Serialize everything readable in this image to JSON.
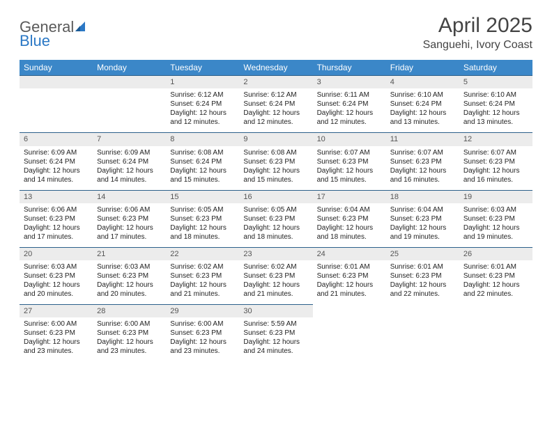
{
  "logo": {
    "text1": "General",
    "text2": "Blue"
  },
  "title": "April 2025",
  "location": "Sanguehi, Ivory Coast",
  "day_headers": [
    "Sunday",
    "Monday",
    "Tuesday",
    "Wednesday",
    "Thursday",
    "Friday",
    "Saturday"
  ],
  "colors": {
    "header_bg": "#3b87c8",
    "header_text": "#ffffff",
    "daynum_bg": "#ececec",
    "daynum_text": "#555555",
    "rule": "#2b5f8a",
    "logo_gray": "#5a5a5a",
    "logo_blue": "#2b78c5"
  },
  "weeks": [
    [
      {
        "blank": true
      },
      {
        "blank": true
      },
      {
        "n": "1",
        "sr": "Sunrise: 6:12 AM",
        "ss": "Sunset: 6:24 PM",
        "dl": "Daylight: 12 hours and 12 minutes."
      },
      {
        "n": "2",
        "sr": "Sunrise: 6:12 AM",
        "ss": "Sunset: 6:24 PM",
        "dl": "Daylight: 12 hours and 12 minutes."
      },
      {
        "n": "3",
        "sr": "Sunrise: 6:11 AM",
        "ss": "Sunset: 6:24 PM",
        "dl": "Daylight: 12 hours and 12 minutes."
      },
      {
        "n": "4",
        "sr": "Sunrise: 6:10 AM",
        "ss": "Sunset: 6:24 PM",
        "dl": "Daylight: 12 hours and 13 minutes."
      },
      {
        "n": "5",
        "sr": "Sunrise: 6:10 AM",
        "ss": "Sunset: 6:24 PM",
        "dl": "Daylight: 12 hours and 13 minutes."
      }
    ],
    [
      {
        "n": "6",
        "sr": "Sunrise: 6:09 AM",
        "ss": "Sunset: 6:24 PM",
        "dl": "Daylight: 12 hours and 14 minutes."
      },
      {
        "n": "7",
        "sr": "Sunrise: 6:09 AM",
        "ss": "Sunset: 6:24 PM",
        "dl": "Daylight: 12 hours and 14 minutes."
      },
      {
        "n": "8",
        "sr": "Sunrise: 6:08 AM",
        "ss": "Sunset: 6:24 PM",
        "dl": "Daylight: 12 hours and 15 minutes."
      },
      {
        "n": "9",
        "sr": "Sunrise: 6:08 AM",
        "ss": "Sunset: 6:23 PM",
        "dl": "Daylight: 12 hours and 15 minutes."
      },
      {
        "n": "10",
        "sr": "Sunrise: 6:07 AM",
        "ss": "Sunset: 6:23 PM",
        "dl": "Daylight: 12 hours and 15 minutes."
      },
      {
        "n": "11",
        "sr": "Sunrise: 6:07 AM",
        "ss": "Sunset: 6:23 PM",
        "dl": "Daylight: 12 hours and 16 minutes."
      },
      {
        "n": "12",
        "sr": "Sunrise: 6:07 AM",
        "ss": "Sunset: 6:23 PM",
        "dl": "Daylight: 12 hours and 16 minutes."
      }
    ],
    [
      {
        "n": "13",
        "sr": "Sunrise: 6:06 AM",
        "ss": "Sunset: 6:23 PM",
        "dl": "Daylight: 12 hours and 17 minutes."
      },
      {
        "n": "14",
        "sr": "Sunrise: 6:06 AM",
        "ss": "Sunset: 6:23 PM",
        "dl": "Daylight: 12 hours and 17 minutes."
      },
      {
        "n": "15",
        "sr": "Sunrise: 6:05 AM",
        "ss": "Sunset: 6:23 PM",
        "dl": "Daylight: 12 hours and 18 minutes."
      },
      {
        "n": "16",
        "sr": "Sunrise: 6:05 AM",
        "ss": "Sunset: 6:23 PM",
        "dl": "Daylight: 12 hours and 18 minutes."
      },
      {
        "n": "17",
        "sr": "Sunrise: 6:04 AM",
        "ss": "Sunset: 6:23 PM",
        "dl": "Daylight: 12 hours and 18 minutes."
      },
      {
        "n": "18",
        "sr": "Sunrise: 6:04 AM",
        "ss": "Sunset: 6:23 PM",
        "dl": "Daylight: 12 hours and 19 minutes."
      },
      {
        "n": "19",
        "sr": "Sunrise: 6:03 AM",
        "ss": "Sunset: 6:23 PM",
        "dl": "Daylight: 12 hours and 19 minutes."
      }
    ],
    [
      {
        "n": "20",
        "sr": "Sunrise: 6:03 AM",
        "ss": "Sunset: 6:23 PM",
        "dl": "Daylight: 12 hours and 20 minutes."
      },
      {
        "n": "21",
        "sr": "Sunrise: 6:03 AM",
        "ss": "Sunset: 6:23 PM",
        "dl": "Daylight: 12 hours and 20 minutes."
      },
      {
        "n": "22",
        "sr": "Sunrise: 6:02 AM",
        "ss": "Sunset: 6:23 PM",
        "dl": "Daylight: 12 hours and 21 minutes."
      },
      {
        "n": "23",
        "sr": "Sunrise: 6:02 AM",
        "ss": "Sunset: 6:23 PM",
        "dl": "Daylight: 12 hours and 21 minutes."
      },
      {
        "n": "24",
        "sr": "Sunrise: 6:01 AM",
        "ss": "Sunset: 6:23 PM",
        "dl": "Daylight: 12 hours and 21 minutes."
      },
      {
        "n": "25",
        "sr": "Sunrise: 6:01 AM",
        "ss": "Sunset: 6:23 PM",
        "dl": "Daylight: 12 hours and 22 minutes."
      },
      {
        "n": "26",
        "sr": "Sunrise: 6:01 AM",
        "ss": "Sunset: 6:23 PM",
        "dl": "Daylight: 12 hours and 22 minutes."
      }
    ],
    [
      {
        "n": "27",
        "sr": "Sunrise: 6:00 AM",
        "ss": "Sunset: 6:23 PM",
        "dl": "Daylight: 12 hours and 23 minutes."
      },
      {
        "n": "28",
        "sr": "Sunrise: 6:00 AM",
        "ss": "Sunset: 6:23 PM",
        "dl": "Daylight: 12 hours and 23 minutes."
      },
      {
        "n": "29",
        "sr": "Sunrise: 6:00 AM",
        "ss": "Sunset: 6:23 PM",
        "dl": "Daylight: 12 hours and 23 minutes."
      },
      {
        "n": "30",
        "sr": "Sunrise: 5:59 AM",
        "ss": "Sunset: 6:23 PM",
        "dl": "Daylight: 12 hours and 24 minutes."
      },
      {
        "blank": true
      },
      {
        "blank": true
      },
      {
        "blank": true
      }
    ]
  ]
}
